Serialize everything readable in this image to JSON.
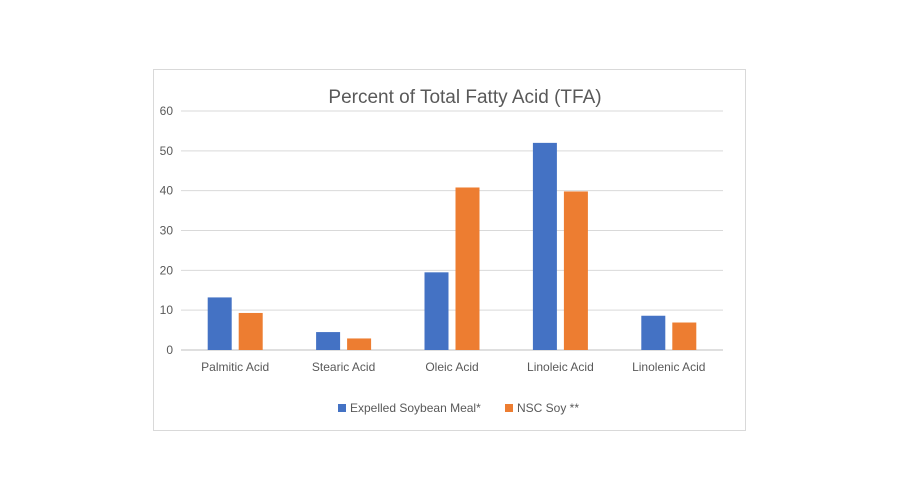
{
  "chart_data": {
    "type": "bar",
    "title": "Percent of Total Fatty Acid (TFA)",
    "categories": [
      "Palmitic Acid",
      "Stearic Acid",
      "Oleic Acid",
      "Linoleic Acid",
      "Linolenic Acid"
    ],
    "series": [
      {
        "name": "Expelled Soybean Meal*",
        "color": "#4472C4",
        "values": [
          13.2,
          4.5,
          19.5,
          52,
          8.6
        ]
      },
      {
        "name": "NSC Soy **",
        "color": "#ED7D31",
        "values": [
          9.3,
          2.9,
          40.8,
          39.8,
          6.9
        ]
      }
    ],
    "ylim": [
      0,
      60
    ],
    "yticks": [
      0,
      10,
      20,
      30,
      40,
      50,
      60
    ],
    "grid": true,
    "legend": "bottom"
  }
}
